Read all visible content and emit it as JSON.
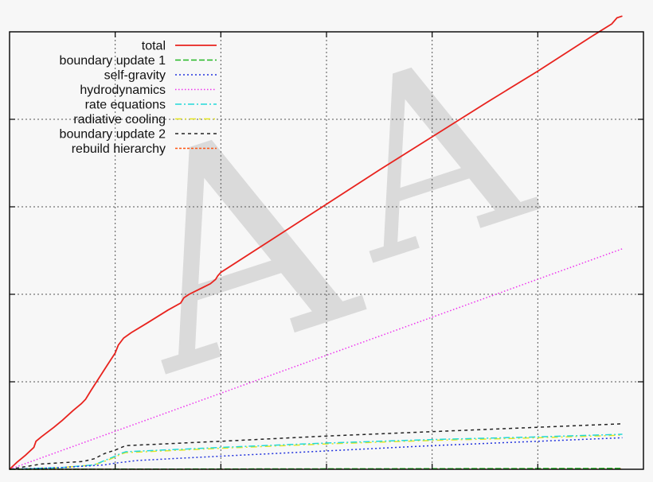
{
  "chart_data": {
    "type": "line",
    "title": "",
    "xlabel": "",
    "ylabel": "",
    "xlim": [
      0,
      6
    ],
    "ylim": [
      0,
      5
    ],
    "grid": true,
    "legend_position": "top-left",
    "series": [
      {
        "name": "total",
        "color": "#e8231e",
        "dash": "solid",
        "x": [
          0,
          0.07,
          0.15,
          0.23,
          0.25,
          0.3,
          0.42,
          0.5,
          0.6,
          0.68,
          0.72,
          0.77,
          0.85,
          0.93,
          1.0,
          1.03,
          1.08,
          1.15,
          1.3,
          1.5,
          1.62,
          1.65,
          1.7,
          1.9,
          1.95,
          1.97,
          2.0,
          2.5,
          3.0,
          3.5,
          4.0,
          4.5,
          5.0,
          5.5,
          5.7,
          5.75,
          5.8
        ],
        "y": [
          0,
          0.08,
          0.16,
          0.25,
          0.32,
          0.37,
          0.48,
          0.56,
          0.67,
          0.75,
          0.8,
          0.9,
          1.05,
          1.2,
          1.33,
          1.42,
          1.5,
          1.56,
          1.67,
          1.82,
          1.9,
          1.96,
          2.0,
          2.12,
          2.17,
          2.21,
          2.25,
          2.64,
          3.03,
          3.42,
          3.8,
          4.18,
          4.55,
          4.94,
          5.09,
          5.16,
          5.18
        ]
      },
      {
        "name": "boundary update 1",
        "color": "#22b822",
        "dash": "7,3",
        "x": [
          0,
          5.8
        ],
        "y": [
          0,
          0.01
        ]
      },
      {
        "name": "self-gravity",
        "color": "#2233dd",
        "dash": "2,3",
        "x": [
          0,
          0.5,
          0.9,
          1.0,
          1.2,
          2.0,
          3.0,
          4.0,
          5.0,
          5.8
        ],
        "y": [
          0,
          0.02,
          0.05,
          0.07,
          0.1,
          0.15,
          0.21,
          0.27,
          0.32,
          0.36
        ]
      },
      {
        "name": "hydrodynamics",
        "color": "#ee33ee",
        "dash": "1.5,2.5",
        "x": [
          0,
          5.8
        ],
        "y": [
          0,
          2.52
        ]
      },
      {
        "name": "rate equations",
        "color": "#22d8d8",
        "dash": "8,3,2,3",
        "x": [
          0,
          0.5,
          0.8,
          0.9,
          1.0,
          1.05,
          1.1,
          2.0,
          3.0,
          4.0,
          5.0,
          5.8
        ],
        "y": [
          0,
          0.02,
          0.05,
          0.1,
          0.15,
          0.18,
          0.2,
          0.25,
          0.3,
          0.34,
          0.37,
          0.4
        ]
      },
      {
        "name": "radiative cooling",
        "color": "#e6e61e",
        "dash": "8,4,2,4",
        "x": [
          0,
          0.5,
          0.8,
          0.9,
          1.0,
          1.05,
          1.1,
          2.0,
          3.0,
          4.0,
          5.0,
          5.8
        ],
        "y": [
          0,
          0.02,
          0.05,
          0.09,
          0.14,
          0.17,
          0.19,
          0.24,
          0.29,
          0.33,
          0.36,
          0.39
        ]
      },
      {
        "name": "boundary update 2",
        "color": "#222222",
        "dash": "4,4",
        "x": [
          0,
          0.3,
          0.7,
          0.8,
          0.9,
          1.0,
          1.1,
          2.0,
          3.0,
          4.0,
          5.0,
          5.8
        ],
        "y": [
          0,
          0.06,
          0.09,
          0.12,
          0.18,
          0.22,
          0.27,
          0.32,
          0.38,
          0.43,
          0.48,
          0.52
        ]
      },
      {
        "name": "rebuild hierarchy",
        "color": "#ff5511",
        "dash": "3,2",
        "x": [
          0,
          5.8
        ],
        "y": [
          0,
          0.005
        ]
      }
    ]
  }
}
